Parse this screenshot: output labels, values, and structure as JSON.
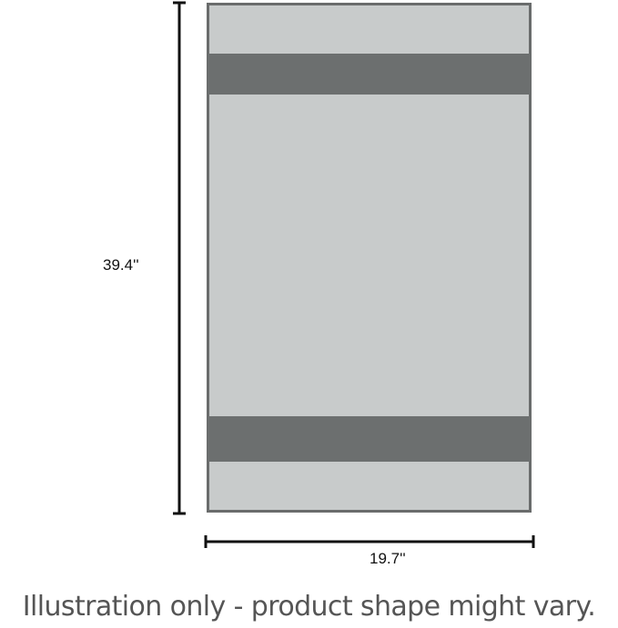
{
  "product": {
    "height_label": "39.4''",
    "width_label": "19.7''",
    "colors": {
      "body": "#c8cbcb",
      "bands": "#6c6f6f",
      "border": "#6a6c6c",
      "dimension_lines": "#111111"
    }
  },
  "caption": "Illustration only - product shape might vary."
}
